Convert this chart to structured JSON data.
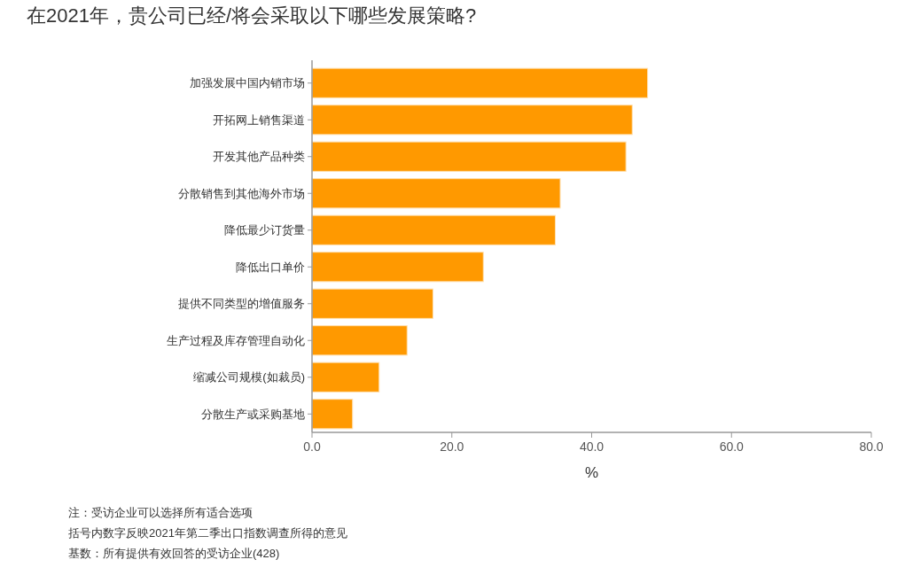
{
  "chart_data": {
    "type": "bar",
    "orientation": "horizontal",
    "title": "在2021年，贵公司已经/将会采取以下哪些发展策略?",
    "xlabel": "%",
    "categories": [
      "加强发展中国内销市场",
      "开拓网上销售渠道",
      "开发其他产品种类",
      "分散销售到其他海外市场",
      "降低最少订货量",
      "降低出口单价",
      "提供不同类型的增值服务",
      "生产过程及库存管理自动化",
      "缩减公司规模(如裁员)",
      "分散生产或采购基地"
    ],
    "values": [
      48.0,
      45.8,
      44.9,
      35.5,
      34.8,
      24.5,
      17.3,
      13.6,
      9.6,
      5.8
    ],
    "color": "#ff9900",
    "xlim": [
      0,
      80
    ],
    "xticks": [
      {
        "value": 0,
        "label": "0.0"
      },
      {
        "value": 20,
        "label": "20.0"
      },
      {
        "value": 40,
        "label": "40.0"
      },
      {
        "value": 60,
        "label": "60.0"
      },
      {
        "value": 80,
        "label": "80.0"
      }
    ],
    "grid": false,
    "annotations": [
      "注：受访企业可以选择所有适合选项",
      "括号内数字反映2021年第二季出口指数调查所得的意见",
      "基数：所有提供有效回答的受访企业(428)"
    ]
  }
}
